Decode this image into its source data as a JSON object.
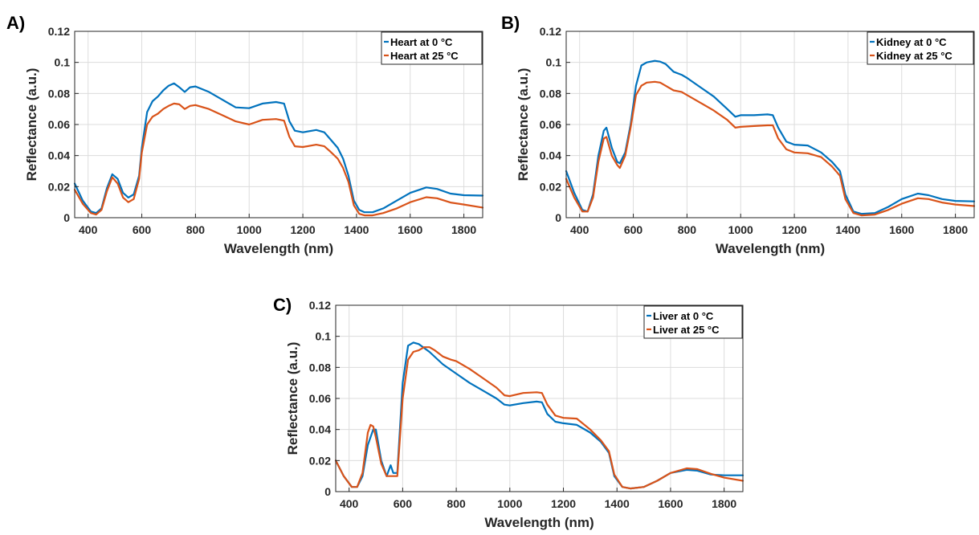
{
  "chart_data": [
    {
      "type": "line",
      "panel": "A)",
      "xlabel": "Wavelength (nm)",
      "ylabel": "Reflectance (a.u.)",
      "xlim": [
        350,
        1870
      ],
      "ylim": [
        0,
        0.12
      ],
      "xticks": [
        400,
        600,
        800,
        1000,
        1200,
        1400,
        1600,
        1800
      ],
      "yticks": [
        0,
        0.02,
        0.04,
        0.06,
        0.08,
        0.1,
        0.12
      ],
      "grid": true,
      "legend_position": "top-right",
      "series": [
        {
          "name": "Heart at 0 °C",
          "color": "#0072BD",
          "x": [
            350,
            380,
            410,
            430,
            450,
            470,
            490,
            510,
            530,
            550,
            570,
            590,
            600,
            620,
            640,
            660,
            680,
            700,
            720,
            740,
            760,
            780,
            800,
            850,
            900,
            950,
            1000,
            1050,
            1100,
            1130,
            1150,
            1170,
            1200,
            1250,
            1280,
            1300,
            1330,
            1350,
            1370,
            1390,
            1410,
            1430,
            1460,
            1500,
            1550,
            1600,
            1660,
            1700,
            1750,
            1800,
            1870
          ],
          "values": [
            0.022,
            0.011,
            0.004,
            0.003,
            0.006,
            0.019,
            0.028,
            0.025,
            0.016,
            0.013,
            0.015,
            0.027,
            0.045,
            0.068,
            0.075,
            0.078,
            0.082,
            0.085,
            0.0865,
            0.084,
            0.081,
            0.084,
            0.0845,
            0.081,
            0.076,
            0.071,
            0.0705,
            0.0735,
            0.0745,
            0.0735,
            0.062,
            0.056,
            0.055,
            0.0565,
            0.055,
            0.051,
            0.045,
            0.038,
            0.027,
            0.011,
            0.005,
            0.0035,
            0.0035,
            0.006,
            0.011,
            0.016,
            0.0195,
            0.0185,
            0.0155,
            0.0145,
            0.0142
          ]
        },
        {
          "name": "Heart at 25 °C",
          "color": "#D95319",
          "x": [
            350,
            380,
            410,
            430,
            450,
            470,
            490,
            510,
            530,
            550,
            570,
            590,
            600,
            620,
            640,
            660,
            680,
            700,
            720,
            740,
            760,
            780,
            800,
            850,
            900,
            950,
            1000,
            1050,
            1100,
            1130,
            1150,
            1170,
            1200,
            1250,
            1280,
            1300,
            1330,
            1350,
            1370,
            1390,
            1410,
            1430,
            1460,
            1500,
            1550,
            1600,
            1660,
            1700,
            1750,
            1800,
            1870
          ],
          "values": [
            0.018,
            0.009,
            0.003,
            0.002,
            0.005,
            0.017,
            0.026,
            0.022,
            0.013,
            0.01,
            0.012,
            0.025,
            0.042,
            0.06,
            0.065,
            0.067,
            0.07,
            0.072,
            0.0735,
            0.073,
            0.07,
            0.072,
            0.0725,
            0.07,
            0.066,
            0.062,
            0.06,
            0.063,
            0.0635,
            0.0625,
            0.052,
            0.046,
            0.0455,
            0.047,
            0.046,
            0.043,
            0.038,
            0.032,
            0.023,
            0.008,
            0.0025,
            0.0015,
            0.0015,
            0.003,
            0.006,
            0.01,
            0.0132,
            0.0125,
            0.0098,
            0.0085,
            0.0065
          ]
        }
      ]
    },
    {
      "type": "line",
      "panel": "B)",
      "xlabel": "Wavelength (nm)",
      "ylabel": "Reflectance (a.u.)",
      "xlim": [
        350,
        1870
      ],
      "ylim": [
        0,
        0.12
      ],
      "xticks": [
        400,
        600,
        800,
        1000,
        1200,
        1400,
        1600,
        1800
      ],
      "yticks": [
        0,
        0.02,
        0.04,
        0.06,
        0.08,
        0.1,
        0.12
      ],
      "grid": true,
      "legend_position": "top-right",
      "series": [
        {
          "name": "Kidney at 0 °C",
          "color": "#0072BD",
          "x": [
            350,
            380,
            410,
            430,
            450,
            470,
            490,
            500,
            520,
            540,
            550,
            570,
            590,
            610,
            630,
            650,
            680,
            700,
            720,
            750,
            780,
            800,
            850,
            900,
            950,
            980,
            1000,
            1050,
            1100,
            1120,
            1140,
            1170,
            1200,
            1250,
            1300,
            1340,
            1370,
            1390,
            1420,
            1450,
            1500,
            1550,
            1600,
            1660,
            1700,
            1750,
            1800,
            1870
          ],
          "values": [
            0.03,
            0.016,
            0.005,
            0.004,
            0.015,
            0.04,
            0.056,
            0.058,
            0.045,
            0.036,
            0.035,
            0.042,
            0.06,
            0.085,
            0.098,
            0.1,
            0.101,
            0.1005,
            0.099,
            0.094,
            0.092,
            0.09,
            0.084,
            0.078,
            0.07,
            0.065,
            0.066,
            0.066,
            0.0665,
            0.066,
            0.058,
            0.049,
            0.047,
            0.0465,
            0.042,
            0.036,
            0.03,
            0.015,
            0.004,
            0.0025,
            0.003,
            0.007,
            0.012,
            0.0155,
            0.0145,
            0.012,
            0.0108,
            0.0105
          ]
        },
        {
          "name": "Kidney at 25 °C",
          "color": "#D95319",
          "x": [
            350,
            380,
            410,
            430,
            450,
            470,
            490,
            500,
            520,
            540,
            550,
            570,
            590,
            610,
            630,
            650,
            680,
            700,
            720,
            750,
            780,
            800,
            850,
            900,
            950,
            980,
            1000,
            1050,
            1100,
            1120,
            1140,
            1170,
            1200,
            1250,
            1300,
            1340,
            1370,
            1390,
            1420,
            1450,
            1500,
            1550,
            1600,
            1660,
            1700,
            1750,
            1800,
            1870
          ],
          "values": [
            0.025,
            0.013,
            0.004,
            0.004,
            0.013,
            0.036,
            0.051,
            0.052,
            0.04,
            0.034,
            0.032,
            0.04,
            0.058,
            0.079,
            0.085,
            0.087,
            0.0875,
            0.087,
            0.085,
            0.082,
            0.081,
            0.079,
            0.074,
            0.069,
            0.063,
            0.058,
            0.0585,
            0.059,
            0.0595,
            0.0595,
            0.051,
            0.044,
            0.042,
            0.0415,
            0.039,
            0.033,
            0.027,
            0.012,
            0.003,
            0.0015,
            0.002,
            0.005,
            0.009,
            0.0125,
            0.012,
            0.0098,
            0.0085,
            0.0075
          ]
        }
      ]
    },
    {
      "type": "line",
      "panel": "C)",
      "xlabel": "Wavelength (nm)",
      "ylabel": "Reflectance (a.u.)",
      "xlim": [
        350,
        1870
      ],
      "ylim": [
        0,
        0.12
      ],
      "xticks": [
        400,
        600,
        800,
        1000,
        1200,
        1400,
        1600,
        1800
      ],
      "yticks": [
        0,
        0.02,
        0.04,
        0.06,
        0.08,
        0.1,
        0.12
      ],
      "grid": true,
      "legend_position": "top-right",
      "series": [
        {
          "name": "Liver at 0 °C",
          "color": "#0072BD",
          "x": [
            350,
            380,
            410,
            430,
            450,
            470,
            490,
            500,
            520,
            540,
            555,
            565,
            580,
            600,
            620,
            640,
            660,
            700,
            750,
            800,
            850,
            900,
            950,
            980,
            1000,
            1050,
            1100,
            1120,
            1140,
            1170,
            1200,
            1250,
            1300,
            1340,
            1370,
            1390,
            1420,
            1450,
            1500,
            1550,
            1600,
            1660,
            1700,
            1750,
            1800,
            1870
          ],
          "values": [
            0.02,
            0.01,
            0.003,
            0.003,
            0.01,
            0.03,
            0.04,
            0.04,
            0.02,
            0.01,
            0.017,
            0.012,
            0.012,
            0.07,
            0.094,
            0.096,
            0.095,
            0.09,
            0.082,
            0.076,
            0.07,
            0.065,
            0.06,
            0.056,
            0.0555,
            0.057,
            0.058,
            0.0575,
            0.05,
            0.045,
            0.044,
            0.043,
            0.038,
            0.032,
            0.025,
            0.01,
            0.003,
            0.002,
            0.003,
            0.007,
            0.012,
            0.014,
            0.0135,
            0.011,
            0.0105,
            0.0105
          ]
        },
        {
          "name": "Liver at 25 °C",
          "color": "#D95319",
          "x": [
            350,
            380,
            410,
            430,
            450,
            470,
            480,
            490,
            500,
            520,
            540,
            555,
            565,
            580,
            600,
            620,
            640,
            660,
            680,
            700,
            720,
            750,
            780,
            800,
            850,
            900,
            950,
            980,
            1000,
            1050,
            1100,
            1120,
            1140,
            1170,
            1200,
            1250,
            1300,
            1340,
            1370,
            1390,
            1420,
            1450,
            1500,
            1550,
            1600,
            1660,
            1700,
            1750,
            1800,
            1870
          ],
          "values": [
            0.02,
            0.01,
            0.003,
            0.003,
            0.012,
            0.038,
            0.043,
            0.042,
            0.035,
            0.018,
            0.01,
            0.01,
            0.01,
            0.01,
            0.06,
            0.085,
            0.09,
            0.091,
            0.093,
            0.093,
            0.091,
            0.087,
            0.085,
            0.084,
            0.079,
            0.073,
            0.067,
            0.062,
            0.0615,
            0.0635,
            0.064,
            0.0635,
            0.056,
            0.049,
            0.0475,
            0.047,
            0.04,
            0.033,
            0.026,
            0.011,
            0.003,
            0.002,
            0.003,
            0.007,
            0.012,
            0.015,
            0.0145,
            0.0115,
            0.009,
            0.007
          ]
        }
      ]
    }
  ]
}
